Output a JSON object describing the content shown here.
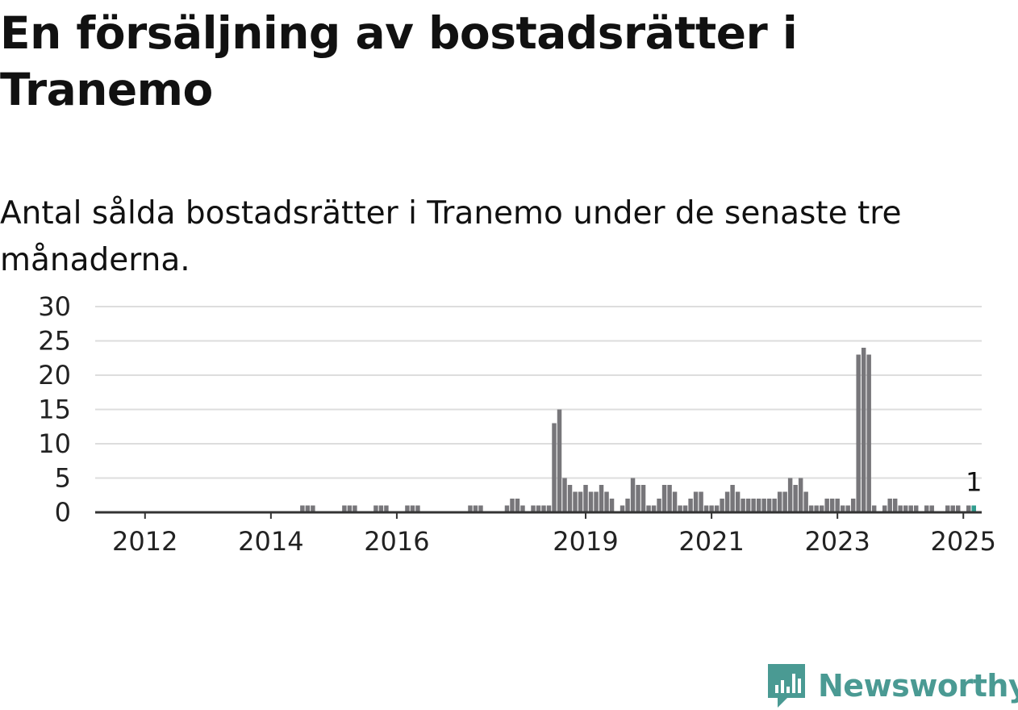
{
  "title": "En försäljning av bostadsrätter i Tranemo",
  "subtitle": "Antal sålda bostadsrätter i Tranemo under de senaste tre månaderna.",
  "brand": {
    "name": "Newsworthy",
    "color": "#4a9a93",
    "icon": "newsworthy-logo-icon"
  },
  "colors": {
    "bar": "#77767a",
    "highlight": "#2f9c8e",
    "grid": "#dddddd",
    "axis": "#333333"
  },
  "chart_data": {
    "type": "bar",
    "title": "",
    "xlabel": "",
    "ylabel": "",
    "ylim": [
      0,
      30
    ],
    "yticks": [
      "0",
      "5",
      "10",
      "15",
      "20",
      "25",
      "30"
    ],
    "xticks": [
      {
        "label": "2012",
        "date": "2012-01"
      },
      {
        "label": "2014",
        "date": "2014-01"
      },
      {
        "label": "2016",
        "date": "2016-01"
      },
      {
        "label": "2019",
        "date": "2019-01"
      },
      {
        "label": "2021",
        "date": "2021-01"
      },
      {
        "label": "2023",
        "date": "2023-01"
      },
      {
        "label": "2025",
        "date": "2025-01"
      }
    ],
    "grid": true,
    "start_month": "2011-04",
    "series": [
      {
        "values": [
          0,
          0,
          0,
          0,
          0,
          0,
          0,
          0,
          0,
          0,
          0,
          0,
          0,
          0,
          0,
          0,
          0,
          0,
          0,
          0,
          0,
          0,
          0,
          0,
          0,
          0,
          0,
          0,
          0,
          0,
          0,
          0,
          0,
          0,
          0,
          0,
          0,
          0,
          0,
          0,
          0,
          0,
          0,
          0,
          0,
          0,
          0,
          0,
          0,
          0,
          0,
          0,
          0,
          0,
          0,
          0,
          0,
          0,
          0,
          0,
          0,
          0,
          0,
          0,
          0,
          0,
          0,
          0,
          0,
          0,
          0,
          0,
          0,
          0,
          0,
          0,
          0,
          0,
          0,
          0,
          0,
          0,
          0,
          0,
          0,
          0,
          0,
          0,
          0,
          0,
          0,
          0,
          0,
          0,
          0,
          0,
          0,
          0,
          0,
          0,
          0,
          0,
          0,
          0,
          0,
          0,
          0,
          0,
          0,
          0,
          0,
          0,
          0,
          0,
          0,
          0,
          0,
          0,
          0,
          0,
          0,
          0,
          0,
          0,
          0,
          0,
          0,
          0,
          0,
          0,
          0,
          0,
          0,
          0,
          0,
          0,
          0,
          0,
          0,
          0,
          0,
          0,
          0,
          0,
          0,
          0,
          0,
          0,
          0,
          0,
          0,
          0,
          0,
          0,
          0,
          0,
          0,
          0,
          0,
          0,
          0,
          0,
          0,
          0,
          0,
          0,
          0,
          0,
          0,
          0,
          0,
          0,
          0,
          0,
          0,
          0,
          0,
          0,
          0,
          0,
          0,
          0,
          0,
          0,
          0,
          0,
          0,
          0,
          0,
          0,
          0,
          0,
          0,
          0,
          0,
          0
        ]
      }
    ],
    "highlight": {
      "date": "2025-03",
      "value": 1,
      "label": "1"
    },
    "monthly": [
      [
        "2014-07",
        1
      ],
      [
        "2014-08",
        1
      ],
      [
        "2014-09",
        1
      ],
      [
        "2015-03",
        1
      ],
      [
        "2015-04",
        1
      ],
      [
        "2015-05",
        1
      ],
      [
        "2015-09",
        1
      ],
      [
        "2015-10",
        1
      ],
      [
        "2015-11",
        1
      ],
      [
        "2016-03",
        1
      ],
      [
        "2016-04",
        1
      ],
      [
        "2016-05",
        1
      ],
      [
        "2017-03",
        1
      ],
      [
        "2017-04",
        1
      ],
      [
        "2017-05",
        1
      ],
      [
        "2017-10",
        1
      ],
      [
        "2017-11",
        2
      ],
      [
        "2017-12",
        2
      ],
      [
        "2018-01",
        1
      ],
      [
        "2018-03",
        1
      ],
      [
        "2018-04",
        1
      ],
      [
        "2018-05",
        1
      ],
      [
        "2018-06",
        1
      ],
      [
        "2018-07",
        13
      ],
      [
        "2018-08",
        15
      ],
      [
        "2018-09",
        5
      ],
      [
        "2018-10",
        4
      ],
      [
        "2018-11",
        3
      ],
      [
        "2018-12",
        3
      ],
      [
        "2019-01",
        4
      ],
      [
        "2019-02",
        3
      ],
      [
        "2019-03",
        3
      ],
      [
        "2019-04",
        4
      ],
      [
        "2019-05",
        3
      ],
      [
        "2019-06",
        2
      ],
      [
        "2019-08",
        1
      ],
      [
        "2019-09",
        2
      ],
      [
        "2019-10",
        5
      ],
      [
        "2019-11",
        4
      ],
      [
        "2019-12",
        4
      ],
      [
        "2020-01",
        1
      ],
      [
        "2020-02",
        1
      ],
      [
        "2020-03",
        2
      ],
      [
        "2020-04",
        4
      ],
      [
        "2020-05",
        4
      ],
      [
        "2020-06",
        3
      ],
      [
        "2020-07",
        1
      ],
      [
        "2020-08",
        1
      ],
      [
        "2020-09",
        2
      ],
      [
        "2020-10",
        3
      ],
      [
        "2020-11",
        3
      ],
      [
        "2020-12",
        1
      ],
      [
        "2021-01",
        1
      ],
      [
        "2021-02",
        1
      ],
      [
        "2021-03",
        2
      ],
      [
        "2021-04",
        3
      ],
      [
        "2021-05",
        4
      ],
      [
        "2021-06",
        3
      ],
      [
        "2021-07",
        2
      ],
      [
        "2021-08",
        2
      ],
      [
        "2021-09",
        2
      ],
      [
        "2021-10",
        2
      ],
      [
        "2021-11",
        2
      ],
      [
        "2021-12",
        2
      ],
      [
        "2022-01",
        2
      ],
      [
        "2022-02",
        3
      ],
      [
        "2022-03",
        3
      ],
      [
        "2022-04",
        5
      ],
      [
        "2022-05",
        4
      ],
      [
        "2022-06",
        5
      ],
      [
        "2022-07",
        3
      ],
      [
        "2022-08",
        1
      ],
      [
        "2022-09",
        1
      ],
      [
        "2022-10",
        1
      ],
      [
        "2022-11",
        2
      ],
      [
        "2022-12",
        2
      ],
      [
        "2023-01",
        2
      ],
      [
        "2023-02",
        1
      ],
      [
        "2023-03",
        1
      ],
      [
        "2023-04",
        2
      ],
      [
        "2023-05",
        23
      ],
      [
        "2023-06",
        24
      ],
      [
        "2023-07",
        23
      ],
      [
        "2023-08",
        1
      ],
      [
        "2023-10",
        1
      ],
      [
        "2023-11",
        2
      ],
      [
        "2023-12",
        2
      ],
      [
        "2024-01",
        1
      ],
      [
        "2024-02",
        1
      ],
      [
        "2024-03",
        1
      ],
      [
        "2024-04",
        1
      ],
      [
        "2024-06",
        1
      ],
      [
        "2024-07",
        1
      ],
      [
        "2024-10",
        1
      ],
      [
        "2024-11",
        1
      ],
      [
        "2024-12",
        1
      ],
      [
        "2025-02",
        1
      ],
      [
        "2025-03",
        1
      ]
    ]
  }
}
